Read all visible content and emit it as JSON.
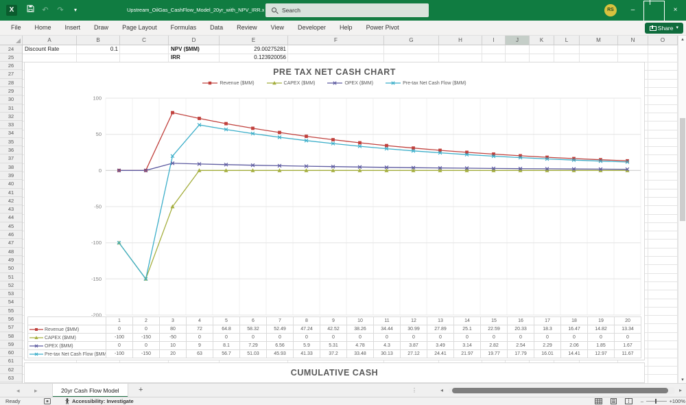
{
  "window": {
    "title": "Upstream_OilGas_CashFlow_Model_20yr_with_NPV_IRR.xlsx  -  Excel",
    "search_placeholder": "Search",
    "avatar_initials": "RS"
  },
  "icons": {
    "minimize": "–",
    "close": "×",
    "undo": "↶",
    "redo": "↷",
    "caret_down": "▾",
    "tri_up": "▴",
    "tri_down": "▾",
    "tri_left": "◂",
    "tri_right": "▸",
    "dots": "⋮",
    "minus": "–",
    "plus": "+"
  },
  "ribbon": {
    "tabs": [
      "File",
      "Home",
      "Insert",
      "Draw",
      "Page Layout",
      "Formulas",
      "Data",
      "Review",
      "View",
      "Developer",
      "Help",
      "Power Pivot"
    ],
    "share_label": "Share"
  },
  "sheet": {
    "column_headers": [
      "A",
      "B",
      "C",
      "D",
      "E",
      "F",
      "G",
      "H",
      "I",
      "J",
      "K",
      "L",
      "M",
      "N",
      "O"
    ],
    "selected_column": "J",
    "rows": {
      "first": 24,
      "last": 63
    },
    "cells": [
      {
        "row": 24,
        "col": "A",
        "text": "Discount Rate",
        "align": "left",
        "bold": false
      },
      {
        "row": 24,
        "col": "B",
        "text": "0.1",
        "align": "right",
        "bold": false
      },
      {
        "row": 24,
        "col": "D",
        "text": "NPV ($MM)",
        "align": "left",
        "bold": true
      },
      {
        "row": 24,
        "col": "E",
        "text": "29.00275281",
        "align": "right",
        "bold": false
      },
      {
        "row": 25,
        "col": "D",
        "text": "IRR",
        "align": "left",
        "bold": true
      },
      {
        "row": 25,
        "col": "E",
        "text": "0.123920056",
        "align": "right",
        "bold": false
      }
    ]
  },
  "chart_data": [
    {
      "type": "line",
      "title": "PRE TAX NET CASH CHART",
      "categories": [
        1,
        2,
        3,
        4,
        5,
        6,
        7,
        8,
        9,
        10,
        11,
        12,
        13,
        14,
        15,
        16,
        17,
        18,
        19,
        20
      ],
      "series": [
        {
          "name": "Revenue ($MM)",
          "color": "#C0403C",
          "marker": "square",
          "values": [
            0,
            0,
            80,
            72,
            64.8,
            58.32,
            52.49,
            47.24,
            42.52,
            38.26,
            34.44,
            30.99,
            27.89,
            25.1,
            22.59,
            20.33,
            18.3,
            16.47,
            14.82,
            13.34
          ]
        },
        {
          "name": "CAPEX ($MM)",
          "color": "#A4AE3D",
          "marker": "triangle",
          "values": [
            -100,
            -150,
            -50,
            0,
            0,
            0,
            0,
            0,
            0,
            0,
            0,
            0,
            0,
            0,
            0,
            0,
            0,
            0,
            0,
            0
          ]
        },
        {
          "name": "OPEX ($MM)",
          "color": "#5D5BA0",
          "marker": "x",
          "values": [
            0,
            0,
            10,
            9,
            8.1,
            7.29,
            6.56,
            5.9,
            5.31,
            4.78,
            4.3,
            3.87,
            3.49,
            3.14,
            2.82,
            2.54,
            2.29,
            2.06,
            1.85,
            1.67
          ]
        },
        {
          "name": "Pre-tax Net Cash Flow ($MM)",
          "color": "#3BAEC9",
          "marker": "x",
          "values": [
            -100,
            -150,
            20,
            63,
            56.7,
            51.03,
            45.93,
            41.33,
            37.2,
            33.48,
            30.13,
            27.12,
            24.41,
            21.97,
            19.77,
            17.79,
            16.01,
            14.41,
            12.97,
            11.67
          ]
        }
      ],
      "ylim": [
        -200,
        100
      ],
      "yticks": [
        100,
        50,
        0,
        -50,
        -100,
        -150,
        -200
      ],
      "legend_position": "top",
      "grid": true,
      "data_table": true
    },
    {
      "type": "line",
      "title": "CUMULATIVE CASH"
    }
  ],
  "sheet_tabs": {
    "tabs": [
      {
        "label": "20yr Cash Flow Model",
        "active": true
      }
    ],
    "add_label": "+"
  },
  "status_bar": {
    "mode": "Ready",
    "accessibility": "Accessibility: Investigate",
    "zoom_level": "100%"
  }
}
